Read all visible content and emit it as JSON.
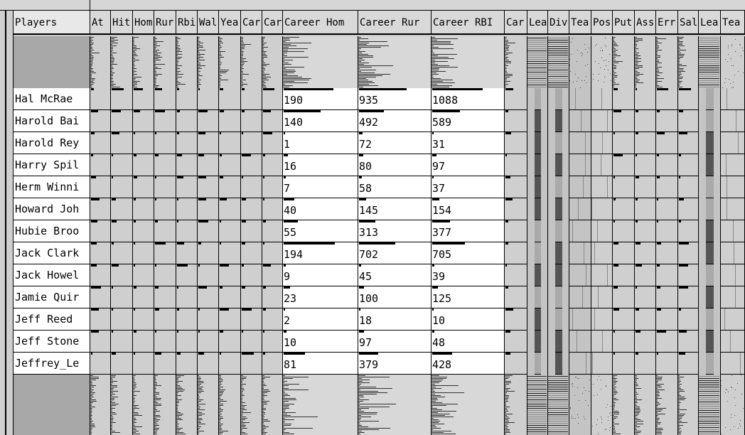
{
  "header_label": "Players",
  "columns": [
    {
      "id": "players",
      "label": "Players"
    },
    {
      "id": "atbat",
      "label": "At"
    },
    {
      "id": "hits",
      "label": "Hit"
    },
    {
      "id": "homer",
      "label": "Hom"
    },
    {
      "id": "runs",
      "label": "Rur"
    },
    {
      "id": "rbi",
      "label": "Rbi"
    },
    {
      "id": "walks",
      "label": "Wal"
    },
    {
      "id": "years",
      "label": "Yea"
    },
    {
      "id": "car1",
      "label": "Car"
    },
    {
      "id": "car2",
      "label": "Car"
    },
    {
      "id": "careerhome",
      "label": "Career Hom"
    },
    {
      "id": "careerruns",
      "label": "Career Rur"
    },
    {
      "id": "careerrbi",
      "label": "Career RBI"
    },
    {
      "id": "car3",
      "label": "Car"
    },
    {
      "id": "league",
      "label": "Lea"
    },
    {
      "id": "division",
      "label": "Div"
    },
    {
      "id": "team",
      "label": "Tea"
    },
    {
      "id": "pos",
      "label": "Pos"
    },
    {
      "id": "putouts",
      "label": "Put"
    },
    {
      "id": "assists",
      "label": "Ass"
    },
    {
      "id": "errors",
      "label": "Err"
    },
    {
      "id": "salary",
      "label": "Sal"
    },
    {
      "id": "league2",
      "label": "Lea"
    },
    {
      "id": "team2",
      "label": "Tea"
    }
  ],
  "rows": [
    {
      "name": "Hal McRae ",
      "career_home": "190",
      "career_runs": "935",
      "career_rbi": "1088"
    },
    {
      "name": "Harold Bai",
      "career_home": "140",
      "career_runs": "492",
      "career_rbi": "589"
    },
    {
      "name": "Harold Rey",
      "career_home": "1",
      "career_runs": "72",
      "career_rbi": "31"
    },
    {
      "name": "Harry Spil",
      "career_home": "16",
      "career_runs": "80",
      "career_rbi": "97"
    },
    {
      "name": "Herm Winni",
      "career_home": "7",
      "career_runs": "58",
      "career_rbi": "37"
    },
    {
      "name": "Howard Joh",
      "career_home": "40",
      "career_runs": "145",
      "career_rbi": "154"
    },
    {
      "name": "Hubie Broo",
      "career_home": "55",
      "career_runs": "313",
      "career_rbi": "377"
    },
    {
      "name": "Jack Clark",
      "career_home": "194",
      "career_runs": "702",
      "career_rbi": "705"
    },
    {
      "name": "Jack Howel",
      "career_home": "9",
      "career_runs": "45",
      "career_rbi": "39"
    },
    {
      "name": "Jamie Quir",
      "career_home": "23",
      "career_runs": "100",
      "career_rbi": "125"
    },
    {
      "name": "Jeff Reed ",
      "career_home": "2",
      "career_runs": "18",
      "career_rbi": "10"
    },
    {
      "name": "Jeff Stone",
      "career_home": "10",
      "career_runs": "97",
      "career_rbi": "48"
    },
    {
      "name": "Jeffrey_Le",
      "career_home": "81",
      "career_runs": "379",
      "career_rbi": "428"
    }
  ],
  "colors": {
    "black": "#000000",
    "cell": "#ffffff",
    "gray": "#c8c8c8",
    "league_dark": "#444444",
    "league_mid": "#999999"
  }
}
